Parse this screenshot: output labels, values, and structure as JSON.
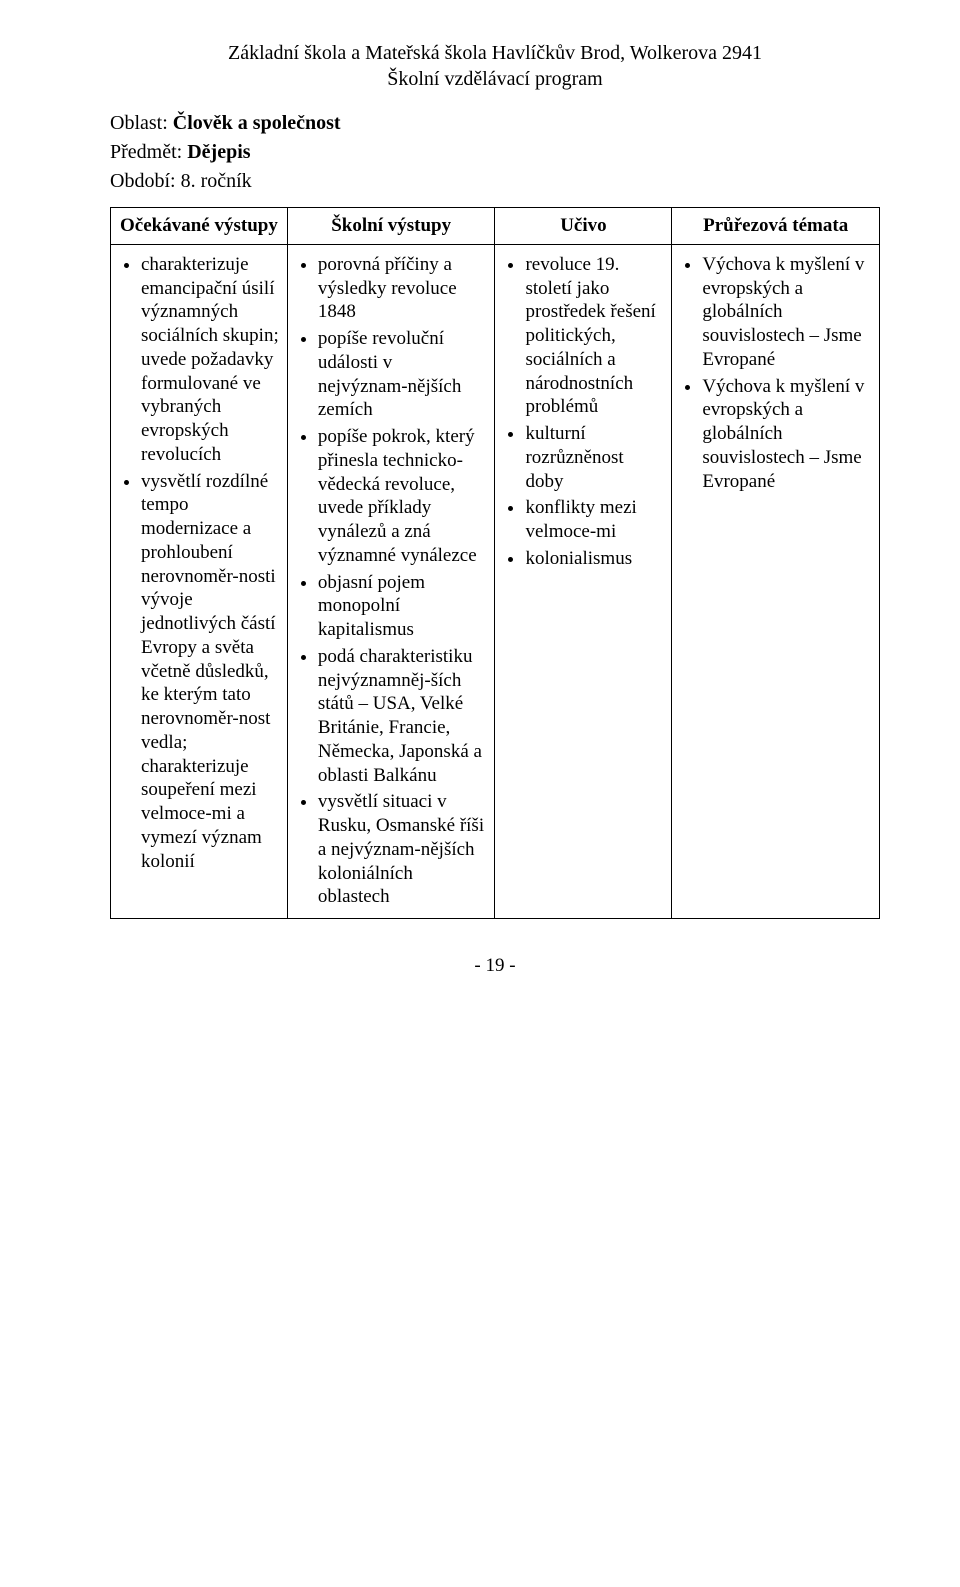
{
  "header": {
    "line1": "Základní škola a Mateřská škola Havlíčkův Brod, Wolkerova 2941",
    "line2": "Školní vzdělávací program"
  },
  "oblast": {
    "label": "Oblast: ",
    "value": "Člověk a společnost"
  },
  "predmet": {
    "label": "Předmět: ",
    "value": "Dějepis"
  },
  "obdobi": {
    "label": "Období: ",
    "value": "8. ročník"
  },
  "columns": {
    "c1": "Očekávané výstupy",
    "c2": "Školní výstupy",
    "c3": "Učivo",
    "c4": "Průřezová témata"
  },
  "rows": [
    {
      "c1": [
        "charakterizuje emancipační úsilí významných sociálních skupin; uvede požadavky formulované ve vybraných evropských revolucích",
        "vysvětlí rozdílné tempo modernizace a prohloubení nerovnoměr-nosti vývoje jednotlivých částí Evropy a světa včetně důsledků, ke kterým tato nerovnoměr-nost vedla; charakterizuje soupeření mezi velmoce-mi a vymezí význam kolonií"
      ],
      "c2": [
        "porovná příčiny a výsledky revoluce 1848",
        "popíše revoluční události v nejvýznam-nějších zemích",
        "popíše pokrok, který přinesla technicko-vědecká revoluce, uvede příklady vynálezů a zná významné vynálezce",
        "objasní pojem monopolní kapitalismus",
        "podá charakteristiku nejvýznamněj-ších států – USA, Velké Británie, Francie, Německa, Japonská a oblasti Balkánu",
        "vysvětlí situaci v Rusku, Osmanské říši a nejvýznam-nějších koloniálních oblastech"
      ],
      "c3": [
        "revoluce 19. století jako prostředek řešení politických, sociálních a národnostních problémů",
        "kulturní rozrůzněnost doby",
        "konflikty mezi velmoce-mi",
        "kolonialismus"
      ],
      "c4": [
        "Výchova k myšlení v evropských a globálních souvislostech – Jsme Evropané",
        "Výchova k myšlení v evropských a globálních souvislostech – Jsme Evropané"
      ]
    }
  ],
  "footer": "- 19 -"
}
